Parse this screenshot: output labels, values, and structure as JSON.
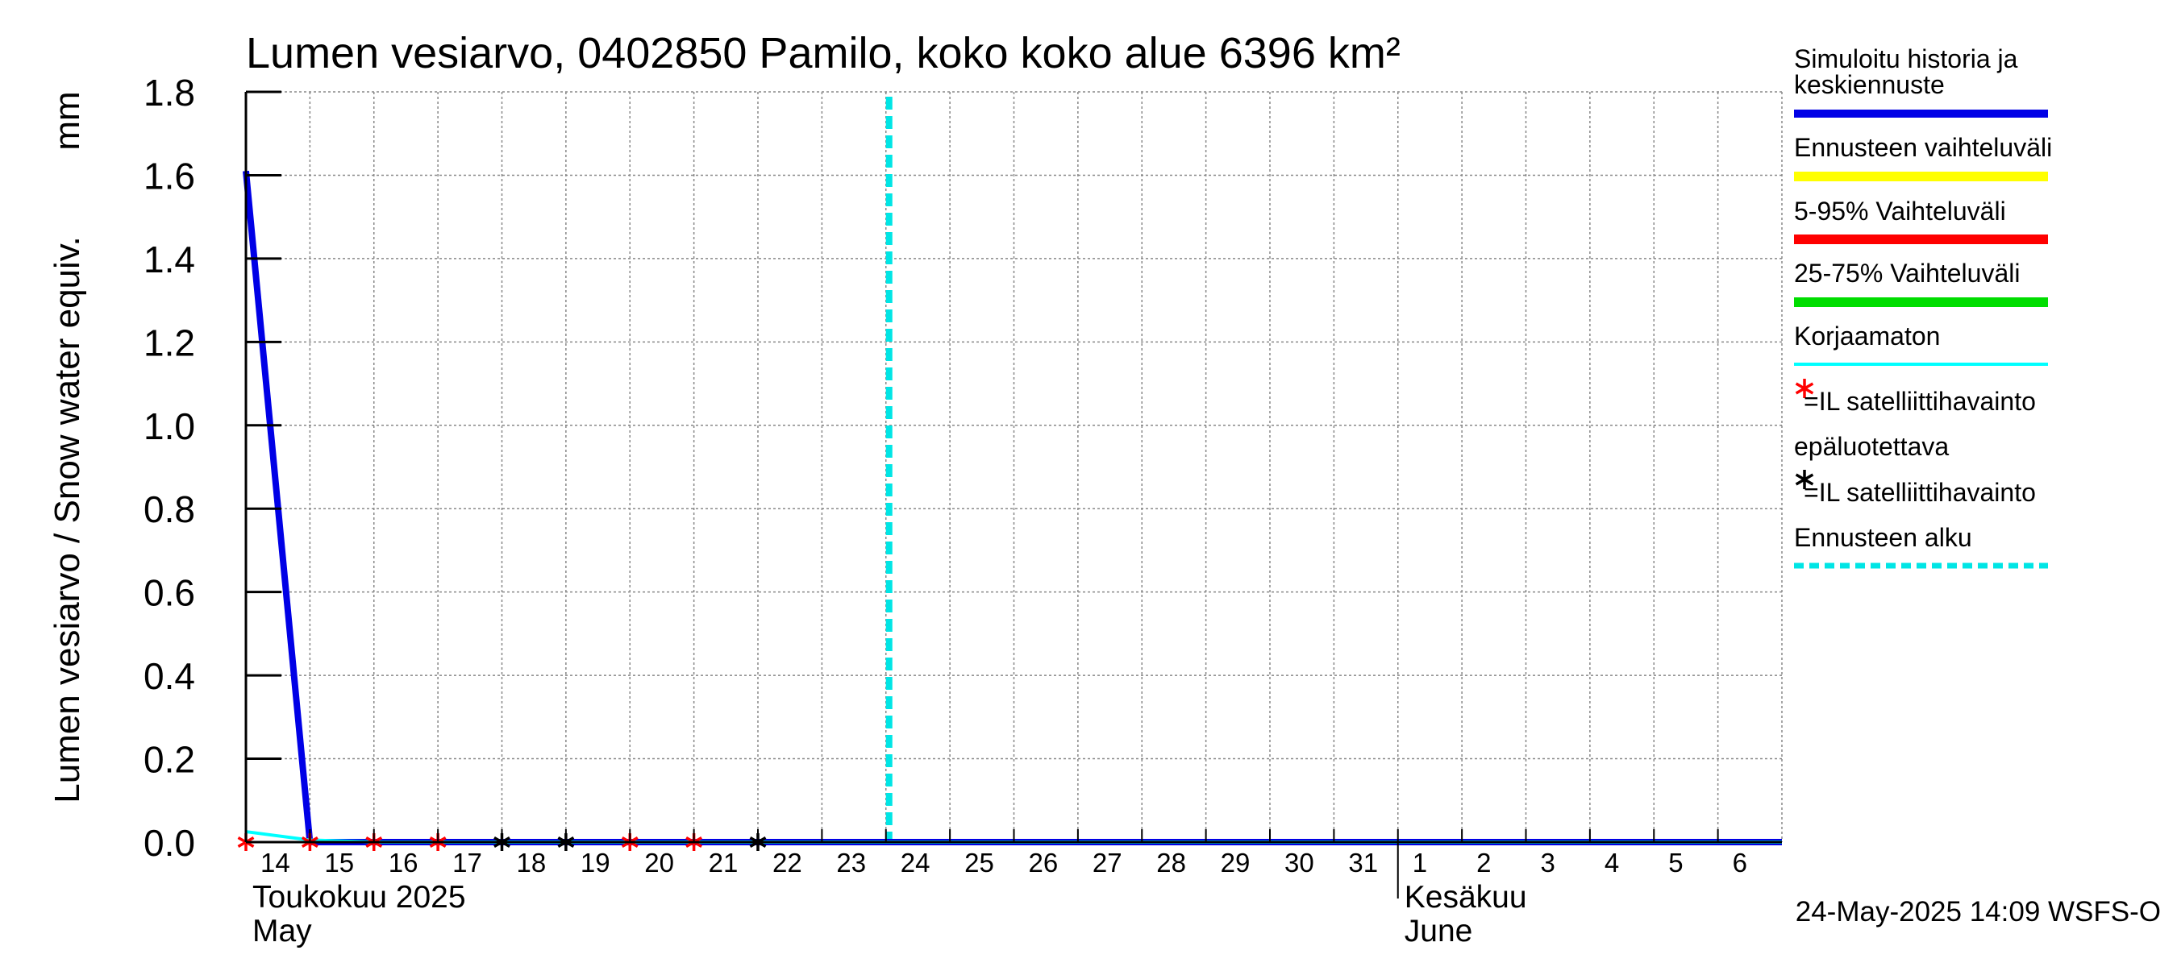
{
  "chart_data": {
    "type": "line",
    "title": "Lumen vesiarvo, 0402850 Pamilo, koko koko alue 6396 km²",
    "ylabel": "Lumen vesiarvo / Snow water equiv.",
    "yunit": "mm",
    "ylim": [
      0.0,
      1.8
    ],
    "yticks": [
      "0.0",
      "0.2",
      "0.4",
      "0.6",
      "0.8",
      "1.0",
      "1.2",
      "1.4",
      "1.6",
      "1.8"
    ],
    "grid": true,
    "x_days": [
      "14",
      "15",
      "16",
      "17",
      "18",
      "19",
      "20",
      "21",
      "22",
      "23",
      "24",
      "25",
      "26",
      "27",
      "28",
      "29",
      "30",
      "31",
      "1",
      "2",
      "3",
      "4",
      "5",
      "6"
    ],
    "month_labels": [
      {
        "fi": "Toukokuu  2025",
        "en": "May",
        "start_day": 0
      },
      {
        "fi": "Kesäkuu",
        "en": "June",
        "start_day": 18
      }
    ],
    "xlim_days": [
      0,
      24
    ],
    "series": [
      {
        "name": "Simuloitu historia ja keskiennuste",
        "color": "#0000e6",
        "points": [
          [
            0,
            1.61
          ],
          [
            1,
            0.0
          ],
          [
            24,
            0.0
          ]
        ]
      },
      {
        "name": "Korjaamaton",
        "color": "#00ffff",
        "points": [
          [
            0,
            0.025
          ],
          [
            1,
            0.005
          ],
          [
            2,
            0.0
          ],
          [
            24,
            0.0
          ]
        ]
      }
    ],
    "satellite_obs": [
      {
        "day": 0,
        "value": 0.0,
        "reliable": false
      },
      {
        "day": 1,
        "value": 0.0,
        "reliable": false
      },
      {
        "day": 2,
        "value": 0.0,
        "reliable": false
      },
      {
        "day": 3,
        "value": 0.0,
        "reliable": false
      },
      {
        "day": 4,
        "value": 0.0,
        "reliable": true
      },
      {
        "day": 5,
        "value": 0.0,
        "reliable": true
      },
      {
        "day": 6,
        "value": 0.0,
        "reliable": false
      },
      {
        "day": 7,
        "value": 0.0,
        "reliable": false
      },
      {
        "day": 8,
        "value": 0.0,
        "reliable": true
      }
    ],
    "forecast_start_day": 10,
    "legend": [
      {
        "label": "Simuloitu historia ja keskiennuste",
        "color": "#0000e6",
        "style": "solid"
      },
      {
        "label": "Ennusteen vaihteluväli",
        "color": "#ffff00",
        "style": "solid"
      },
      {
        "label": "5-95% Vaihteluväli",
        "color": "#ff0000",
        "style": "solid"
      },
      {
        "label": "25-75% Vaihteluväli",
        "color": "#00dd00",
        "style": "solid"
      },
      {
        "label": "Korjaamaton",
        "color": "#00ffff",
        "style": "thin"
      },
      {
        "label": "=IL satelliittihavainto epäluotettava",
        "color": "#ff0000",
        "style": "star"
      },
      {
        "label": "=IL satelliittihavainto",
        "color": "#000000",
        "style": "star"
      },
      {
        "label": "Ennusteen alku",
        "color": "#00e5e5",
        "style": "dashed"
      }
    ],
    "footer": "24-May-2025 14:09 WSFS-O"
  }
}
